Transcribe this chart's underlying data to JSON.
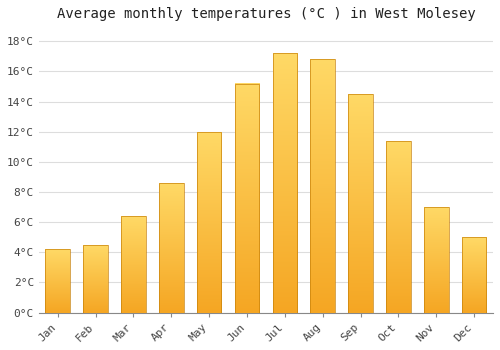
{
  "title": "Average monthly temperatures (°C ) in West Molesey",
  "months": [
    "Jan",
    "Feb",
    "Mar",
    "Apr",
    "May",
    "Jun",
    "Jul",
    "Aug",
    "Sep",
    "Oct",
    "Nov",
    "Dec"
  ],
  "values": [
    4.2,
    4.5,
    6.4,
    8.6,
    12.0,
    15.2,
    17.2,
    16.8,
    14.5,
    11.4,
    7.0,
    5.0
  ],
  "bar_color_light": "#FFD966",
  "bar_color_dark": "#F5A623",
  "background_color": "#FFFFFF",
  "grid_color": "#DDDDDD",
  "ylim": [
    0,
    19
  ],
  "yticks": [
    0,
    2,
    4,
    6,
    8,
    10,
    12,
    14,
    16,
    18
  ],
  "ytick_labels": [
    "0°C",
    "2°C",
    "4°C",
    "6°C",
    "8°C",
    "10°C",
    "12°C",
    "14°C",
    "16°C",
    "18°C"
  ],
  "title_fontsize": 10,
  "tick_fontsize": 8,
  "font_family": "monospace",
  "bar_width": 0.65
}
